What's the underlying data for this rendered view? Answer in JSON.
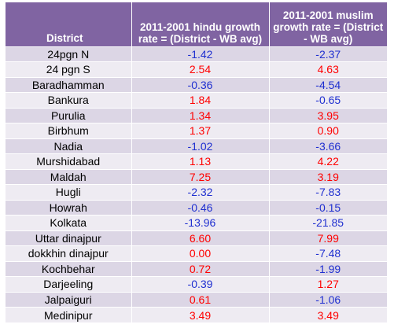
{
  "table": {
    "headers": {
      "district": "District",
      "hindu": "2011-2001 hindu growth rate = (District - WB avg)",
      "muslim": "2011-2001 muslim growth rate = (District - WB avg)"
    },
    "rows": [
      {
        "district": "24pgn N",
        "hindu": "-1.42",
        "muslim": "-2.37"
      },
      {
        "district": "24 pgn S",
        "hindu": "2.54",
        "muslim": "4.63"
      },
      {
        "district": "Baradhamman",
        "hindu": "-0.36",
        "muslim": "-4.54"
      },
      {
        "district": "Bankura",
        "hindu": "1.84",
        "muslim": "-0.65"
      },
      {
        "district": "Purulia",
        "hindu": "1.34",
        "muslim": "3.95"
      },
      {
        "district": "Birbhum",
        "hindu": "1.37",
        "muslim": "0.90"
      },
      {
        "district": "Nadia",
        "hindu": "-1.02",
        "muslim": "-3.66"
      },
      {
        "district": "Murshidabad",
        "hindu": "1.13",
        "muslim": "4.22"
      },
      {
        "district": "Maldah",
        "hindu": "7.25",
        "muslim": "3.19"
      },
      {
        "district": "Hugli",
        "hindu": "-2.32",
        "muslim": "-7.83"
      },
      {
        "district": "Howrah",
        "hindu": "-0.46",
        "muslim": "-0.15"
      },
      {
        "district": "Kolkata",
        "hindu": "-13.96",
        "muslim": "-21.85"
      },
      {
        "district": "Uttar dinajpur",
        "hindu": "6.60",
        "muslim": "7.99"
      },
      {
        "district": "dokkhin dinajpur",
        "hindu": "0.00",
        "muslim": "-7.48"
      },
      {
        "district": "Kochbehar",
        "hindu": "0.72",
        "muslim": "-1.99"
      },
      {
        "district": "Darjeeling",
        "hindu": "-0.39",
        "muslim": "1.27"
      },
      {
        "district": "Jalpaiguri",
        "hindu": "0.61",
        "muslim": "-1.06"
      },
      {
        "district": "Medinipur",
        "hindu": "3.49",
        "muslim": "3.49"
      }
    ]
  },
  "colors": {
    "header_bg": "#8064a2",
    "row_dark": "#dcd6e5",
    "row_light": "#eeebf2",
    "positive_text": "#ff0000",
    "negative_text": "#1f2fd0"
  }
}
